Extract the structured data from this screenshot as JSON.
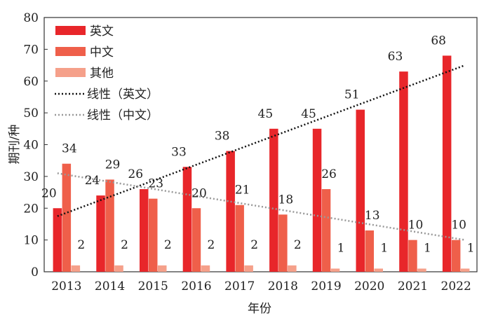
{
  "chart_data": {
    "type": "bar",
    "title": "",
    "xlabel": "年份",
    "ylabel": "期刊/种",
    "ylim": [
      0,
      80
    ],
    "yticks": [
      "0",
      "10",
      "20",
      "30",
      "40",
      "50",
      "60",
      "70",
      "80"
    ],
    "categories": [
      "2013",
      "2014",
      "2015",
      "2016",
      "2017",
      "2018",
      "2019",
      "2020",
      "2021",
      "2022"
    ],
    "series": [
      {
        "name": "英文",
        "color": "#e8262a",
        "values": [
          20,
          24,
          26,
          33,
          38,
          45,
          45,
          51,
          63,
          68
        ]
      },
      {
        "name": "中文",
        "color": "#ef5f4a",
        "values": [
          34,
          29,
          23,
          20,
          21,
          18,
          26,
          13,
          10,
          10
        ]
      },
      {
        "name": "其他",
        "color": "#f5a08a",
        "values": [
          2,
          2,
          2,
          2,
          2,
          2,
          1,
          1,
          1,
          1
        ]
      }
    ],
    "trendlines": [
      {
        "name": "线性（英文）",
        "color": "#111111",
        "start": [
          2013,
          17.5
        ],
        "end": [
          2022,
          65
        ]
      },
      {
        "name": "线性（中文）",
        "color": "#999999",
        "start": [
          2013,
          31
        ],
        "end": [
          2022,
          10
        ]
      }
    ],
    "legend_position": "top-left",
    "grid": false
  }
}
